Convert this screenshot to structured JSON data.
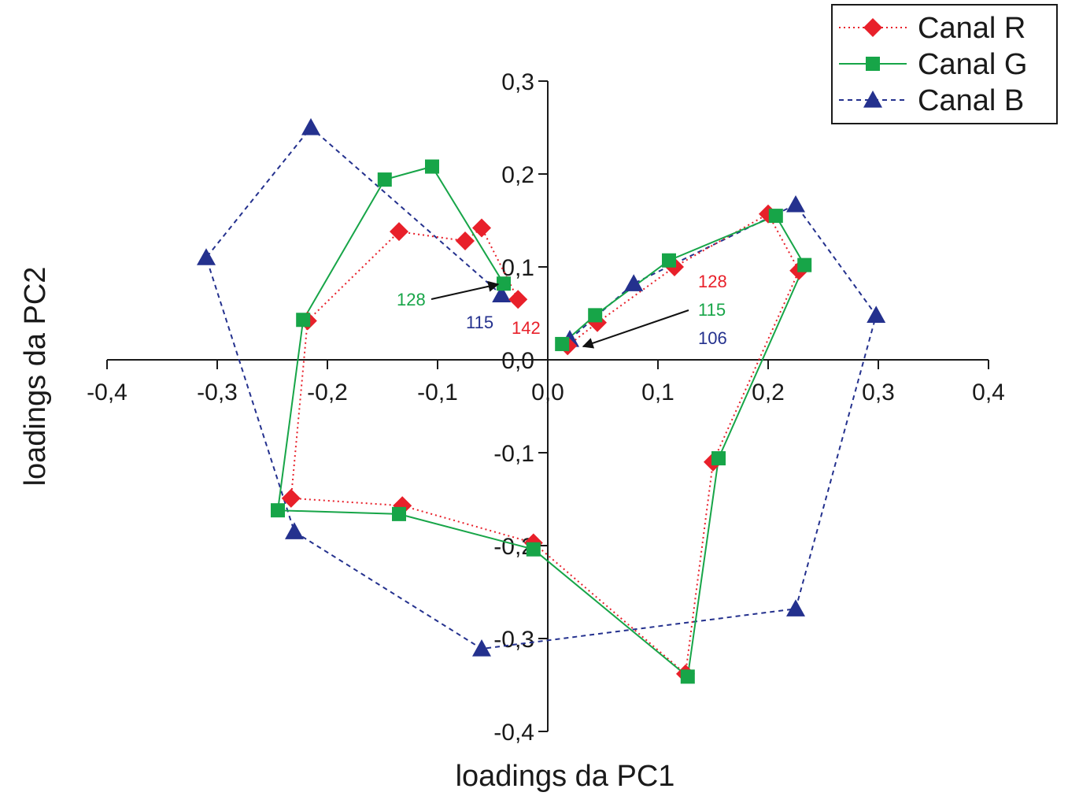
{
  "chart_data": {
    "type": "scatter",
    "xlabel": "loadings da PC1",
    "ylabel": "loadings da PC2",
    "xlim": [
      -0.4,
      0.4
    ],
    "ylim": [
      -0.4,
      0.3
    ],
    "x_ticks": [
      "-0,4",
      "-0,3",
      "-0,2",
      "-0,1",
      "0,0",
      "0,1",
      "0,2",
      "0,3",
      "0,4"
    ],
    "y_ticks": [
      "-0,4",
      "-0,3",
      "-0,2",
      "-0,1",
      "0,0",
      "0,1",
      "0,2",
      "0,3"
    ],
    "grid": false,
    "legend_position": "top-right",
    "series": [
      {
        "name": "Canal R",
        "color": "#e8202a",
        "marker": "diamond",
        "line": "dotted",
        "points": [
          [
            0.018,
            0.015
          ],
          [
            0.045,
            0.04
          ],
          [
            0.115,
            0.1
          ],
          [
            0.2,
            0.157
          ],
          [
            0.228,
            0.096
          ],
          [
            0.15,
            -0.11
          ],
          [
            0.125,
            -0.338
          ],
          [
            -0.013,
            -0.197
          ],
          [
            -0.132,
            -0.157
          ],
          [
            -0.233,
            -0.149
          ],
          [
            -0.218,
            0.042
          ],
          [
            -0.135,
            0.138
          ],
          [
            -0.075,
            0.128
          ],
          [
            -0.06,
            0.142
          ],
          [
            -0.027,
            0.065
          ]
        ]
      },
      {
        "name": "Canal G",
        "color": "#17a548",
        "marker": "square",
        "line": "solid",
        "points": [
          [
            0.013,
            0.017
          ],
          [
            0.043,
            0.048
          ],
          [
            0.11,
            0.107
          ],
          [
            0.207,
            0.155
          ],
          [
            0.233,
            0.102
          ],
          [
            0.155,
            -0.106
          ],
          [
            0.127,
            -0.341
          ],
          [
            -0.013,
            -0.204
          ],
          [
            -0.135,
            -0.166
          ],
          [
            -0.245,
            -0.162
          ],
          [
            -0.222,
            0.043
          ],
          [
            -0.148,
            0.194
          ],
          [
            -0.105,
            0.208
          ],
          [
            -0.04,
            0.082
          ]
        ]
      },
      {
        "name": "Canal B",
        "color": "#24318e",
        "marker": "triangle",
        "line": "dashed",
        "points": [
          [
            0.02,
            0.022
          ],
          [
            0.078,
            0.082
          ],
          [
            0.225,
            0.167
          ],
          [
            0.298,
            0.048
          ],
          [
            0.225,
            -0.268
          ],
          [
            -0.06,
            -0.311
          ],
          [
            -0.23,
            -0.185
          ],
          [
            -0.31,
            0.11
          ],
          [
            -0.215,
            0.25
          ],
          [
            -0.042,
            0.07
          ]
        ]
      }
    ],
    "annotations": {
      "left": {
        "label_g": "128",
        "label_b": "115",
        "label_r": "142"
      },
      "right": {
        "label_r": "128",
        "label_g": "115",
        "label_b": "106"
      }
    }
  }
}
